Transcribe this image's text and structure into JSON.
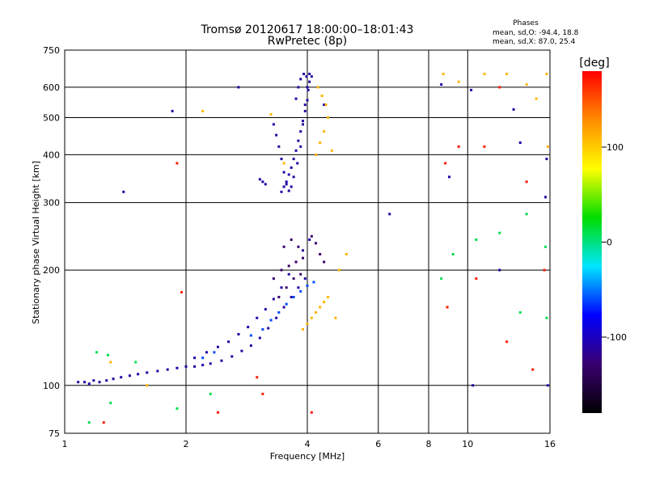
{
  "chart_data": {
    "type": "scatter",
    "title": "Tromsø 20120617 18:00:00–18:01:43",
    "subtitle": "RwPretec (8p)",
    "xlabel": "Frequency [MHz]",
    "ylabel": "Stationary phase Virtual Height [km]",
    "x_scale": "log",
    "y_scale": "log",
    "xlim": [
      1,
      16
    ],
    "ylim": [
      75,
      750
    ],
    "x_ticks": [
      1,
      2,
      4,
      6,
      8,
      10,
      16
    ],
    "y_ticks": [
      75,
      100,
      200,
      300,
      400,
      500,
      600,
      750
    ],
    "grid": true,
    "legend_title": "Phases",
    "legend_lines": [
      "mean, sd,O: -94.4, 18.8",
      "mean, sd,X:  87.0, 25.4"
    ],
    "legend_placement": "top-right",
    "colorbar": {
      "label": "[deg]",
      "ticks": [
        100,
        0,
        -100
      ],
      "range": [
        -180,
        180
      ],
      "colors_top_to_bottom": [
        "#ff0000",
        "#ff8c00",
        "#ffff00",
        "#00dd00",
        "#00e5ff",
        "#0000ff",
        "#3a0070",
        "#000000"
      ]
    },
    "series": [
      {
        "points": [
          [
            1.08,
            102,
            -110
          ],
          [
            1.12,
            102,
            -110
          ],
          [
            1.15,
            101,
            -110
          ],
          [
            1.18,
            103,
            -110
          ],
          [
            1.22,
            102,
            -110
          ],
          [
            1.27,
            103,
            -110
          ],
          [
            1.32,
            104,
            -110
          ],
          [
            1.38,
            105,
            -110
          ],
          [
            1.45,
            106,
            -110
          ],
          [
            1.52,
            107,
            -110
          ],
          [
            1.6,
            108,
            -110
          ],
          [
            1.7,
            109,
            -110
          ],
          [
            1.8,
            110,
            -110
          ],
          [
            1.9,
            111,
            -110
          ],
          [
            2.0,
            112,
            -110
          ],
          [
            2.1,
            112,
            -110
          ],
          [
            2.2,
            113,
            -110
          ],
          [
            2.3,
            114,
            -110
          ],
          [
            2.45,
            116,
            -110
          ],
          [
            2.6,
            119,
            -110
          ],
          [
            2.75,
            123,
            -110
          ],
          [
            2.9,
            127,
            -110
          ],
          [
            3.05,
            133,
            -110
          ],
          [
            3.2,
            141,
            -110
          ],
          [
            3.35,
            150,
            -110
          ],
          [
            3.5,
            160,
            -110
          ],
          [
            3.65,
            170,
            -110
          ],
          [
            3.8,
            180,
            -110
          ],
          [
            3.95,
            190,
            -110
          ],
          [
            2.1,
            118,
            -110
          ],
          [
            2.25,
            122,
            -110
          ],
          [
            2.4,
            126,
            -110
          ],
          [
            2.55,
            130,
            -110
          ],
          [
            2.7,
            136,
            -110
          ],
          [
            2.85,
            142,
            -110
          ],
          [
            3.0,
            150,
            -110
          ],
          [
            3.15,
            158,
            -110
          ],
          [
            3.3,
            168,
            -110
          ],
          [
            3.45,
            180,
            -110
          ],
          [
            3.6,
            195,
            -110
          ],
          [
            3.75,
            210,
            -110
          ],
          [
            3.9,
            225,
            -110
          ],
          [
            4.05,
            240,
            -110
          ],
          [
            3.45,
            320,
            -110
          ],
          [
            3.5,
            330,
            -110
          ],
          [
            3.55,
            340,
            -110
          ],
          [
            3.6,
            355,
            -110
          ],
          [
            3.65,
            370,
            -110
          ],
          [
            3.7,
            390,
            -110
          ],
          [
            3.75,
            410,
            -110
          ],
          [
            3.8,
            435,
            -110
          ],
          [
            3.85,
            460,
            -110
          ],
          [
            3.9,
            490,
            -110
          ],
          [
            3.95,
            520,
            -110
          ],
          [
            4.0,
            555,
            -110
          ],
          [
            4.02,
            590,
            -110
          ],
          [
            4.05,
            620,
            -110
          ],
          [
            4.1,
            640,
            -110
          ],
          [
            3.3,
            480,
            -110
          ],
          [
            3.35,
            450,
            -110
          ],
          [
            3.4,
            420,
            -110
          ],
          [
            3.45,
            390,
            -110
          ],
          [
            3.5,
            360,
            -110
          ],
          [
            3.55,
            335,
            -110
          ],
          [
            3.6,
            322,
            -110
          ],
          [
            3.65,
            330,
            -110
          ],
          [
            3.7,
            350,
            -110
          ],
          [
            3.78,
            380,
            -110
          ],
          [
            3.85,
            420,
            -110
          ],
          [
            3.9,
            480,
            -110
          ],
          [
            3.95,
            540,
            -110
          ],
          [
            4.0,
            600,
            -110
          ],
          [
            4.05,
            650,
            -110
          ],
          [
            3.75,
            560,
            -110
          ],
          [
            3.8,
            600,
            -110
          ],
          [
            3.85,
            630,
            -110
          ],
          [
            3.92,
            650,
            -110
          ],
          [
            3.98,
            640,
            -110
          ],
          [
            3.1,
            340,
            -110
          ],
          [
            3.15,
            335,
            -110
          ],
          [
            3.05,
            345,
            -110
          ],
          [
            1.85,
            520,
            -110
          ],
          [
            2.7,
            600,
            -110
          ],
          [
            1.4,
            320,
            -110
          ],
          [
            4.4,
            540,
            -110
          ],
          [
            6.4,
            280,
            -110
          ],
          [
            8.6,
            610,
            -110
          ],
          [
            10.2,
            590,
            -110
          ],
          [
            13,
            525,
            -110
          ],
          [
            15.7,
            390,
            -110
          ],
          [
            9.0,
            350,
            -110
          ],
          [
            12.0,
            200,
            -110
          ],
          [
            15.6,
            310,
            -110
          ],
          [
            10.3,
            100,
            -110
          ],
          [
            13.5,
            430,
            -110
          ],
          [
            15.8,
            100,
            -110
          ]
        ]
      },
      {
        "points": [
          [
            3.3,
            190,
            -130
          ],
          [
            3.45,
            200,
            -130
          ],
          [
            3.6,
            205,
            -130
          ],
          [
            3.75,
            210,
            -130
          ],
          [
            3.9,
            215,
            -130
          ],
          [
            3.4,
            170,
            -130
          ],
          [
            3.55,
            180,
            -130
          ],
          [
            3.7,
            190,
            -130
          ],
          [
            3.85,
            195,
            -130
          ],
          [
            3.5,
            230,
            -130
          ],
          [
            3.65,
            240,
            -130
          ],
          [
            3.8,
            230,
            -130
          ],
          [
            4.1,
            245,
            -130
          ],
          [
            4.2,
            235,
            -130
          ],
          [
            4.3,
            220,
            -130
          ],
          [
            4.4,
            210,
            -130
          ],
          [
            2.9,
            135,
            -60
          ],
          [
            3.1,
            140,
            -60
          ],
          [
            3.25,
            148,
            -60
          ],
          [
            3.4,
            155,
            -60
          ],
          [
            3.55,
            163,
            -60
          ],
          [
            3.7,
            170,
            -60
          ],
          [
            3.85,
            176,
            -60
          ],
          [
            4.0,
            182,
            -60
          ],
          [
            4.15,
            186,
            -60
          ],
          [
            2.2,
            118,
            -60
          ],
          [
            2.35,
            122,
            -60
          ]
        ]
      },
      {
        "points": [
          [
            3.9,
            140,
            110
          ],
          [
            4.0,
            145,
            110
          ],
          [
            4.1,
            150,
            110
          ],
          [
            4.2,
            155,
            110
          ],
          [
            4.3,
            160,
            110
          ],
          [
            4.4,
            165,
            110
          ],
          [
            4.5,
            170,
            110
          ],
          [
            4.2,
            400,
            110
          ],
          [
            4.3,
            430,
            110
          ],
          [
            4.4,
            460,
            110
          ],
          [
            4.5,
            500,
            110
          ],
          [
            4.45,
            540,
            110
          ],
          [
            4.35,
            570,
            110
          ],
          [
            4.6,
            410,
            110
          ],
          [
            4.25,
            600,
            110
          ],
          [
            4.8,
            200,
            110
          ],
          [
            5.0,
            220,
            110
          ],
          [
            4.7,
            150,
            110
          ],
          [
            3.25,
            510,
            110
          ],
          [
            3.5,
            380,
            110
          ],
          [
            1.3,
            115,
            110
          ],
          [
            1.6,
            100,
            110
          ],
          [
            2.2,
            520,
            110
          ],
          [
            8.7,
            650,
            110
          ],
          [
            9.5,
            620,
            110
          ],
          [
            11,
            650,
            110
          ],
          [
            12.5,
            650,
            110
          ],
          [
            14,
            610,
            110
          ],
          [
            15.7,
            650,
            110
          ],
          [
            15.8,
            420,
            110
          ],
          [
            14.8,
            560,
            110
          ]
        ]
      },
      {
        "points": [
          [
            1.9,
            380,
            170
          ],
          [
            1.95,
            175,
            170
          ],
          [
            1.25,
            80,
            170
          ],
          [
            2.4,
            85,
            170
          ],
          [
            8.8,
            380,
            170
          ],
          [
            9.5,
            420,
            170
          ],
          [
            11,
            420,
            170
          ],
          [
            12,
            600,
            170
          ],
          [
            14,
            340,
            170
          ],
          [
            15.5,
            200,
            170
          ],
          [
            8.9,
            160,
            170
          ],
          [
            10.5,
            190,
            170
          ],
          [
            12.5,
            130,
            170
          ],
          [
            14.5,
            110,
            170
          ],
          [
            3.1,
            95,
            170
          ],
          [
            3.0,
            105,
            170
          ],
          [
            4.1,
            85,
            170
          ]
        ]
      },
      {
        "points": [
          [
            1.2,
            122,
            10
          ],
          [
            1.28,
            120,
            10
          ],
          [
            1.15,
            80,
            10
          ],
          [
            1.3,
            90,
            10
          ],
          [
            1.5,
            115,
            10
          ],
          [
            8.6,
            190,
            10
          ],
          [
            9.2,
            220,
            10
          ],
          [
            10.5,
            240,
            10
          ],
          [
            12,
            250,
            10
          ],
          [
            14,
            280,
            10
          ],
          [
            15.6,
            230,
            10
          ],
          [
            15.7,
            150,
            10
          ],
          [
            13.5,
            155,
            10
          ],
          [
            2.3,
            95,
            10
          ],
          [
            1.9,
            87,
            10
          ]
        ]
      }
    ]
  }
}
